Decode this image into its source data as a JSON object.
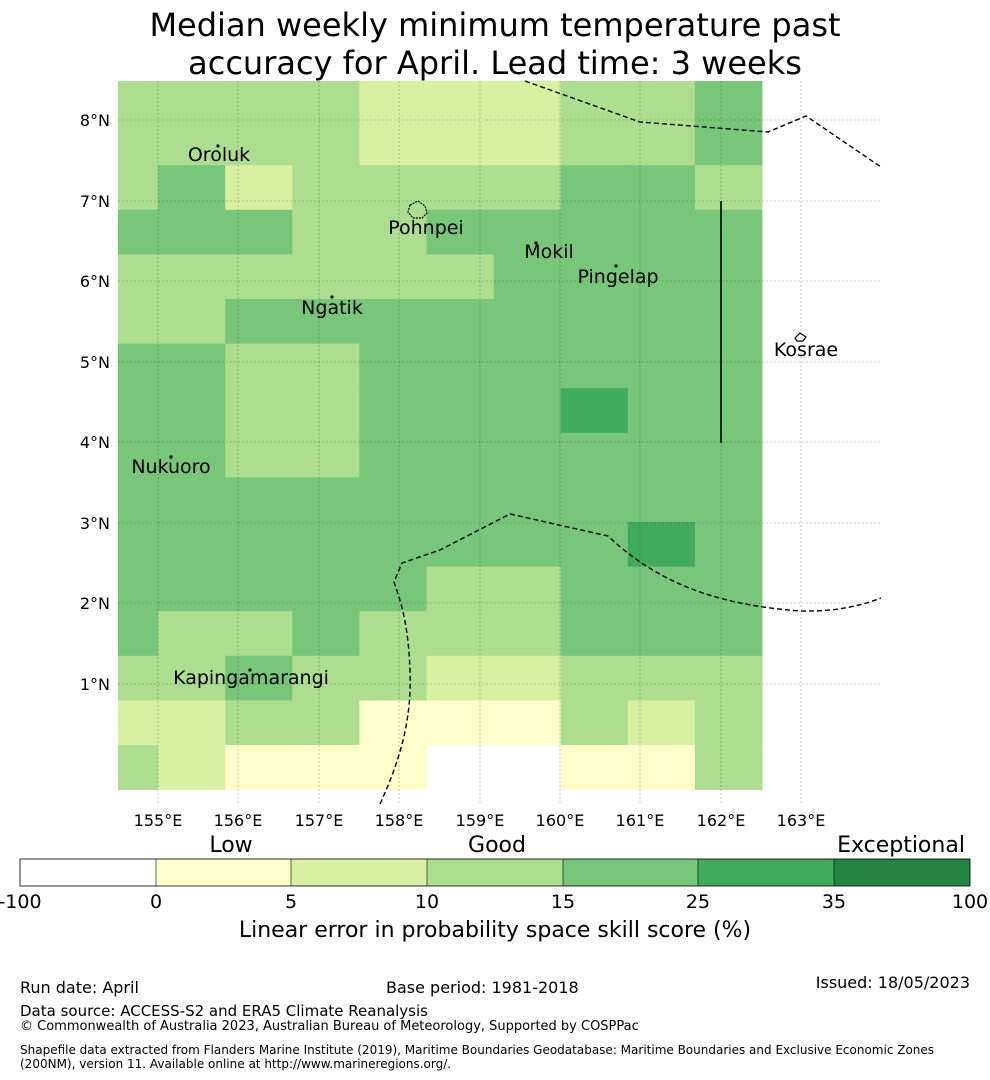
{
  "title": {
    "line1": "Median weekly minimum temperature past",
    "line2": "accuracy for April. Lead time: 3 weeks"
  },
  "map": {
    "lat_ticks": [
      "8°N",
      "7°N",
      "6°N",
      "5°N",
      "4°N",
      "3°N",
      "2°N",
      "1°N"
    ],
    "lon_ticks": [
      "155°E",
      "156°E",
      "157°E",
      "158°E",
      "159°E",
      "160°E",
      "161°E",
      "162°E",
      "163°E"
    ],
    "places": [
      "Oroluk",
      "Pohnpei",
      "Mokil",
      "Pingelap",
      "Ngatik",
      "Kosrae",
      "Nukuoro",
      "Kapingamarangi"
    ],
    "grid_rows": [
      "3333222334",
      "3333222334",
      "3423333443",
      "4443344444",
      "3333334444",
      "3344444444",
      "4433444444",
      "4433444544",
      "4433444444",
      "4444444444",
      "4444444454",
      "4444433444",
      "4334333444",
      "3343322333",
      "2233111323",
      "3211100113"
    ],
    "colors": {
      "0": "#ffffff",
      "1": "#ffffcc",
      "2": "#d9f0a3",
      "3": "#addd8e",
      "4": "#78c679",
      "5": "#41ab5d",
      "6": "#238443"
    }
  },
  "colorbar": {
    "categories": [
      "Low",
      "Good",
      "Exceptional"
    ],
    "ticks": [
      "-100",
      "0",
      "5",
      "10",
      "15",
      "25",
      "35",
      "100"
    ],
    "label": "Linear error in probability space skill score (%)"
  },
  "footer": {
    "run_date": "Run date: April",
    "base_period": "Base period: 1981-2018",
    "issued": "Issued: 18/05/2023",
    "data_source": "Data source: ACCESS-S2 and ERA5 Climate Reanalysis",
    "copyright": "© Commonwealth of Australia 2023, Australian Bureau of Meteorology, Supported by COSPPac",
    "shapefile": "Shapefile data extracted from Flanders Marine Institute (2019), Maritime Boundaries Geodatabase: Maritime Boundaries and Exclusive Economic Zones (200NM), version 11. Available online at http://www.marineregions.org/."
  }
}
